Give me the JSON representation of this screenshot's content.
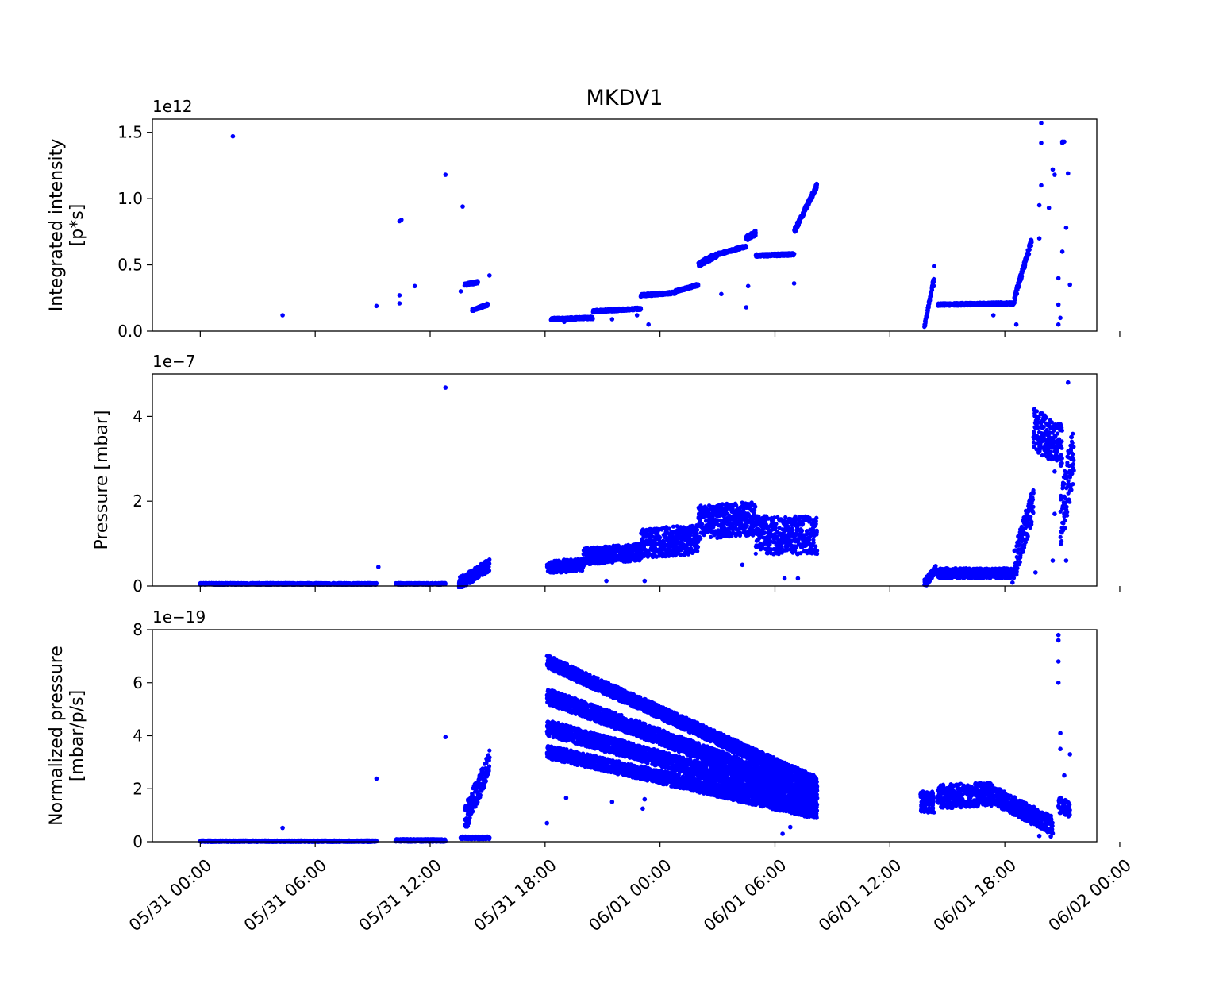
{
  "chart_data": [
    {
      "type": "scatter",
      "title": "MKDV1",
      "ylabel_lines": [
        "Integrated intensity",
        "[p*s]"
      ],
      "offset_label": "1e12",
      "ylim": [
        0,
        1.6
      ],
      "yticks": [
        0.0,
        0.5,
        1.0,
        1.5
      ],
      "ytick_labels": [
        "0.0",
        "0.5",
        "1.0",
        "1.5"
      ],
      "color": "#0000ff",
      "x_unit": "hours since 05/31 00:00",
      "segments": [
        {
          "x0": 18.3,
          "x1": 20.5,
          "y0": 0.09,
          "y1": 0.1,
          "spread": 0.01
        },
        {
          "x0": 20.5,
          "x1": 23.0,
          "y0": 0.15,
          "y1": 0.17,
          "spread": 0.01
        },
        {
          "x0": 23.0,
          "x1": 24.8,
          "y0": 0.27,
          "y1": 0.29,
          "spread": 0.01
        },
        {
          "x0": 24.8,
          "x1": 26.0,
          "y0": 0.3,
          "y1": 0.35,
          "spread": 0.01
        },
        {
          "x0": 26.0,
          "x1": 27.0,
          "y0": 0.5,
          "y1": 0.58,
          "spread": 0.02
        },
        {
          "x0": 27.0,
          "x1": 28.5,
          "y0": 0.58,
          "y1": 0.64,
          "spread": 0.01
        },
        {
          "x0": 28.5,
          "x1": 29.0,
          "y0": 0.7,
          "y1": 0.74,
          "spread": 0.02
        },
        {
          "x0": 29.0,
          "x1": 31.0,
          "y0": 0.57,
          "y1": 0.58,
          "spread": 0.01
        },
        {
          "x0": 31.0,
          "x1": 32.2,
          "y0": 0.75,
          "y1": 1.1,
          "spread": 0.02
        },
        {
          "x0": 13.8,
          "x1": 14.5,
          "y0": 0.35,
          "y1": 0.37,
          "spread": 0.01
        },
        {
          "x0": 14.2,
          "x1": 15.0,
          "y0": 0.16,
          "y1": 0.2,
          "spread": 0.01
        },
        {
          "x0": 38.5,
          "x1": 42.5,
          "y0": 0.2,
          "y1": 0.21,
          "spread": 0.01
        },
        {
          "x0": 42.5,
          "x1": 43.4,
          "y0": 0.25,
          "y1": 0.68,
          "spread": 0.03
        },
        {
          "x0": 37.8,
          "x1": 38.3,
          "y0": 0.03,
          "y1": 0.4,
          "spread": 0.02
        }
      ],
      "points": [
        [
          1.7,
          1.47
        ],
        [
          4.3,
          0.12
        ],
        [
          9.2,
          0.19
        ],
        [
          10.4,
          0.83
        ],
        [
          10.5,
          0.84
        ],
        [
          10.4,
          0.27
        ],
        [
          10.4,
          0.21
        ],
        [
          11.2,
          0.34
        ],
        [
          12.8,
          1.18
        ],
        [
          13.7,
          0.94
        ],
        [
          13.6,
          0.3
        ],
        [
          15.1,
          0.42
        ],
        [
          15.0,
          0.2
        ],
        [
          19.0,
          0.07
        ],
        [
          21.5,
          0.09
        ],
        [
          22.8,
          0.12
        ],
        [
          23.4,
          0.05
        ],
        [
          27.2,
          0.28
        ],
        [
          28.5,
          0.18
        ],
        [
          28.6,
          0.34
        ],
        [
          31.0,
          0.36
        ],
        [
          38.3,
          0.49
        ],
        [
          38.3,
          0.34
        ],
        [
          42.6,
          0.05
        ],
        [
          41.4,
          0.12
        ],
        [
          43.9,
          1.57
        ],
        [
          43.9,
          1.42
        ],
        [
          43.9,
          1.1
        ],
        [
          43.8,
          0.95
        ],
        [
          43.8,
          0.7
        ],
        [
          44.5,
          1.22
        ],
        [
          44.6,
          1.18
        ],
        [
          44.3,
          0.93
        ],
        [
          44.8,
          0.05
        ],
        [
          44.8,
          0.2
        ],
        [
          44.8,
          0.4
        ],
        [
          45.0,
          1.43
        ],
        [
          45.0,
          1.42
        ],
        [
          45.1,
          1.43
        ],
        [
          45.3,
          1.19
        ],
        [
          45.2,
          0.78
        ],
        [
          45.0,
          0.6
        ],
        [
          45.4,
          0.35
        ],
        [
          44.9,
          0.1
        ]
      ]
    },
    {
      "type": "scatter",
      "ylabel_lines": [
        "Pressure [mbar]"
      ],
      "offset_label": "1e−7",
      "ylim": [
        0,
        5
      ],
      "yticks": [
        0,
        2,
        4
      ],
      "ytick_labels": [
        "0",
        "2",
        "4"
      ],
      "color": "#0000ff",
      "x_unit": "hours since 05/31 00:00",
      "segments": [
        {
          "x0": 0.0,
          "x1": 9.2,
          "y0": 0.05,
          "y1": 0.05,
          "spread": 0.02
        },
        {
          "x0": 10.2,
          "x1": 12.8,
          "y0": 0.05,
          "y1": 0.05,
          "spread": 0.02
        },
        {
          "x0": 13.5,
          "x1": 15.1,
          "y0": 0.05,
          "y1": 0.5,
          "spread": 0.15
        },
        {
          "x0": 18.1,
          "x1": 20.0,
          "y0": 0.45,
          "y1": 0.5,
          "spread": 0.15
        },
        {
          "x0": 20.0,
          "x1": 23.0,
          "y0": 0.7,
          "y1": 0.8,
          "spread": 0.2
        },
        {
          "x0": 23.0,
          "x1": 26.0,
          "y0": 1.0,
          "y1": 1.1,
          "spread": 0.35
        },
        {
          "x0": 26.0,
          "x1": 29.0,
          "y0": 1.5,
          "y1": 1.6,
          "spread": 0.4
        },
        {
          "x0": 29.0,
          "x1": 32.2,
          "y0": 1.2,
          "y1": 1.2,
          "spread": 0.45
        },
        {
          "x0": 37.8,
          "x1": 38.4,
          "y0": 0.05,
          "y1": 0.4,
          "spread": 0.1
        },
        {
          "x0": 38.5,
          "x1": 42.5,
          "y0": 0.3,
          "y1": 0.3,
          "spread": 0.12
        },
        {
          "x0": 42.5,
          "x1": 43.5,
          "y0": 0.5,
          "y1": 2.0,
          "spread": 0.4
        },
        {
          "x0": 43.5,
          "x1": 45.0,
          "y0": 3.7,
          "y1": 3.3,
          "spread": 0.5
        },
        {
          "x0": 44.9,
          "x1": 45.6,
          "y0": 1.5,
          "y1": 3.2,
          "spread": 0.7
        }
      ],
      "points": [
        [
          9.3,
          0.45
        ],
        [
          12.8,
          4.68
        ],
        [
          21.2,
          0.12
        ],
        [
          23.2,
          0.12
        ],
        [
          28.3,
          0.5
        ],
        [
          30.5,
          0.18
        ],
        [
          31.2,
          0.18
        ],
        [
          42.4,
          0.08
        ],
        [
          44.6,
          2.7
        ],
        [
          44.6,
          1.7
        ],
        [
          45.3,
          4.8
        ],
        [
          45.2,
          0.6
        ],
        [
          44.5,
          0.6
        ],
        [
          43.6,
          0.32
        ],
        [
          43.0,
          1.5
        ]
      ]
    },
    {
      "type": "scatter",
      "ylabel_lines": [
        "Normalized pressure",
        "[mbar/p/s]"
      ],
      "offset_label": "1e−19",
      "ylim": [
        0,
        8
      ],
      "yticks": [
        0,
        2,
        4,
        6,
        8
      ],
      "ytick_labels": [
        "0",
        "2",
        "4",
        "6",
        "8"
      ],
      "xlim": [
        -2.5,
        46.8
      ],
      "xticks": [
        0,
        6,
        12,
        18,
        24,
        30,
        36,
        42,
        48
      ],
      "xtick_labels": [
        "05/31 00:00",
        "05/31 06:00",
        "05/31 12:00",
        "05/31 18:00",
        "06/01 00:00",
        "06/01 06:00",
        "06/01 12:00",
        "06/01 18:00",
        "06/02 00:00"
      ],
      "color": "#0000ff",
      "x_unit": "hours since 05/31 00:00",
      "segments": [
        {
          "x0": 0.0,
          "x1": 9.2,
          "y0": 0.02,
          "y1": 0.02,
          "spread": 0.03
        },
        {
          "x0": 10.2,
          "x1": 12.8,
          "y0": 0.05,
          "y1": 0.05,
          "spread": 0.05
        },
        {
          "x0": 13.6,
          "x1": 15.1,
          "y0": 0.15,
          "y1": 0.15,
          "spread": 0.05
        },
        {
          "x0": 13.8,
          "x1": 15.1,
          "y0": 0.8,
          "y1": 3.0,
          "spread": 0.5
        },
        {
          "x0": 18.1,
          "x1": 32.2,
          "y0": 6.8,
          "y1": 2.2,
          "spread": 0.25
        },
        {
          "x0": 18.1,
          "x1": 32.2,
          "y0": 5.5,
          "y1": 1.8,
          "spread": 0.3
        },
        {
          "x0": 18.1,
          "x1": 32.2,
          "y0": 4.3,
          "y1": 1.5,
          "spread": 0.3
        },
        {
          "x0": 18.1,
          "x1": 32.2,
          "y0": 3.4,
          "y1": 1.1,
          "spread": 0.25
        },
        {
          "x0": 37.6,
          "x1": 38.3,
          "y0": 1.5,
          "y1": 1.5,
          "spread": 0.4
        },
        {
          "x0": 38.5,
          "x1": 41.3,
          "y0": 1.7,
          "y1": 1.8,
          "spread": 0.45
        },
        {
          "x0": 41.3,
          "x1": 44.5,
          "y0": 1.8,
          "y1": 0.6,
          "spread": 0.35
        },
        {
          "x0": 44.8,
          "x1": 45.4,
          "y0": 1.4,
          "y1": 1.2,
          "spread": 0.3
        }
      ],
      "points": [
        [
          4.3,
          0.52
        ],
        [
          9.2,
          2.38
        ],
        [
          12.8,
          3.95
        ],
        [
          18.1,
          0.7
        ],
        [
          19.1,
          1.65
        ],
        [
          21.5,
          1.5
        ],
        [
          23.1,
          1.25
        ],
        [
          23.2,
          1.6
        ],
        [
          30.4,
          0.3
        ],
        [
          30.8,
          0.55
        ],
        [
          44.8,
          7.8
        ],
        [
          44.8,
          7.6
        ],
        [
          44.8,
          6.8
        ],
        [
          44.8,
          6.0
        ],
        [
          44.9,
          4.1
        ],
        [
          44.9,
          3.5
        ],
        [
          45.1,
          2.5
        ],
        [
          45.4,
          3.3
        ],
        [
          43.8,
          0.22
        ],
        [
          44.4,
          0.2
        ]
      ]
    }
  ]
}
